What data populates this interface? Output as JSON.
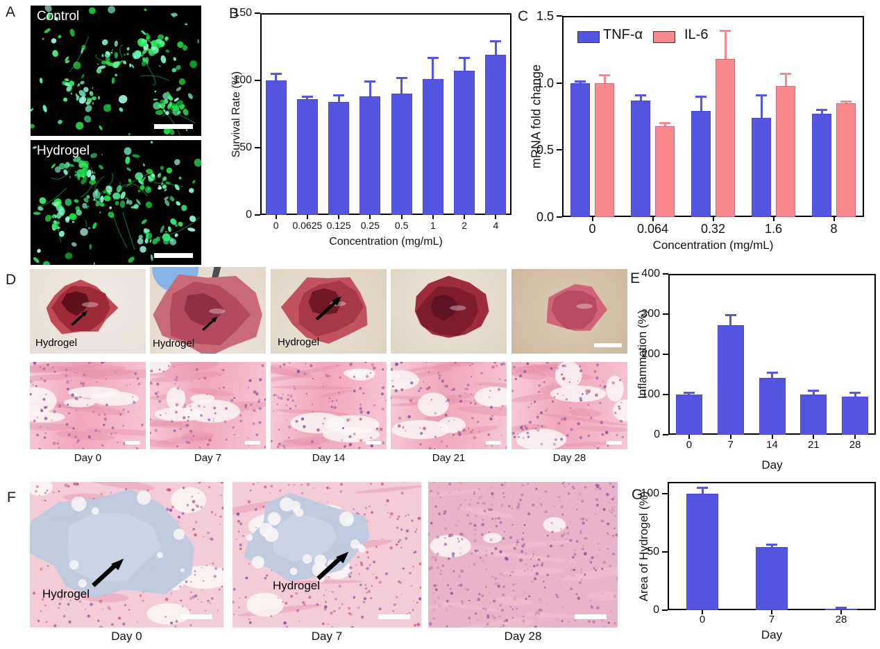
{
  "panels": {
    "A": {
      "label": "A",
      "images": [
        {
          "caption": "Control"
        },
        {
          "caption": "Hydrogel"
        }
      ]
    },
    "B": {
      "label": "B"
    },
    "C": {
      "label": "C"
    },
    "D": {
      "label": "D",
      "photos": [
        {
          "caption": "Day 0",
          "annotation": "Hydrogel"
        },
        {
          "caption": "Day 7",
          "annotation": "Hydrogel"
        },
        {
          "caption": "Day 14",
          "annotation": "Hydrogel"
        },
        {
          "caption": "Day 21",
          "annotation": ""
        },
        {
          "caption": "Day 28",
          "annotation": ""
        }
      ]
    },
    "E": {
      "label": "E"
    },
    "F": {
      "label": "F",
      "images": [
        {
          "caption": "Day 0",
          "annotation": "Hydrogel"
        },
        {
          "caption": "Day 7",
          "annotation": "Hydrogel"
        },
        {
          "caption": "Day 28",
          "annotation": ""
        }
      ]
    },
    "G": {
      "label": "G"
    }
  },
  "colors": {
    "bar_blue": "#5456e2",
    "bar_salmon": "#f9898b",
    "axis": "#000000",
    "fluor_green": "#2ee84f"
  },
  "chart_data": [
    {
      "id": "B",
      "type": "bar",
      "title": "",
      "xlabel": "Concentration (mg/mL)",
      "ylabel": "Survival Rate (%)",
      "categories": [
        "0",
        "0.0625",
        "0.125",
        "0.25",
        "0.5",
        "1",
        "2",
        "4"
      ],
      "values": [
        100,
        86,
        84,
        88,
        90,
        101,
        107,
        119
      ],
      "errors": [
        5,
        2,
        5,
        11,
        12,
        16,
        10,
        10
      ],
      "ylim": [
        0,
        150
      ],
      "yticks": [
        "0",
        "50",
        "100",
        "150"
      ],
      "bar_color": "#5456e2",
      "grid": false,
      "legend_position": "none"
    },
    {
      "id": "C",
      "type": "bar",
      "title": "",
      "xlabel": "Concentration (mg/mL)",
      "ylabel": "mRNA fold change",
      "categories": [
        "0",
        "0.064",
        "0.32",
        "1.6",
        "8"
      ],
      "series": [
        {
          "name": "TNF-α",
          "color": "#5456e2",
          "values": [
            1.0,
            0.87,
            0.79,
            0.74,
            0.77
          ],
          "errors": [
            0.01,
            0.04,
            0.11,
            0.17,
            0.03
          ]
        },
        {
          "name": "IL-6",
          "color": "#f9898b",
          "values": [
            1.0,
            0.68,
            1.18,
            0.98,
            0.85
          ],
          "errors": [
            0.06,
            0.02,
            0.21,
            0.09,
            0.01
          ]
        }
      ],
      "ylim": [
        0,
        1.5
      ],
      "yticks": [
        "0.0",
        "0.5",
        "1.0",
        "1.5"
      ],
      "grid": false,
      "legend_position": "top-left"
    },
    {
      "id": "E",
      "type": "bar",
      "title": "",
      "xlabel": "Day",
      "ylabel": "Inflammation (%)",
      "categories": [
        "0",
        "7",
        "14",
        "21",
        "28"
      ],
      "values": [
        100,
        272,
        142,
        100,
        95
      ],
      "errors": [
        5,
        25,
        13,
        10,
        10
      ],
      "ylim": [
        0,
        400
      ],
      "yticks": [
        "0",
        "100",
        "200",
        "300",
        "400"
      ],
      "bar_color": "#5456e2",
      "grid": false,
      "legend_position": "none"
    },
    {
      "id": "G",
      "type": "bar",
      "title": "",
      "xlabel": "Day",
      "ylabel": "Area of Hydrogel (%)",
      "categories": [
        "0",
        "7",
        "28"
      ],
      "values": [
        100,
        54,
        1
      ],
      "errors": [
        5,
        2,
        1
      ],
      "ylim": [
        0,
        110
      ],
      "yticks": [
        "0",
        "50",
        "100"
      ],
      "bar_color": "#5456e2",
      "grid": false,
      "legend_position": "none"
    }
  ]
}
